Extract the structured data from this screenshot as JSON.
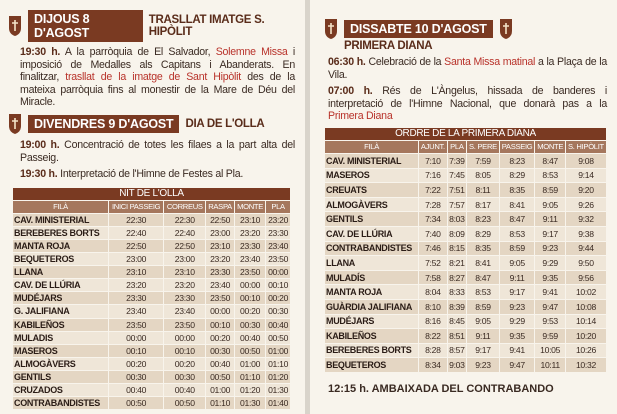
{
  "left": {
    "day1": {
      "title": "DIJOUS 8 D'AGOST",
      "subtitle": "TRASLLAT IMATGE S. HIPÒLIT"
    },
    "paras1": [
      [
        {
          "text": "19:30 h.",
          "bold": true
        },
        {
          "text": " A la parròquia de El Salvador, "
        },
        {
          "text": "Solemne Missa",
          "color": "#b8322a"
        },
        {
          "text": " i imposició de Medalles als Capitans i Abanderats. En finalitzar, "
        },
        {
          "text": "trasllat de la imatge de Sant Hipòlit",
          "color": "#b8322a"
        },
        {
          "text": " des de la mateixa parròquia fins al monestir de la Mare de Déu del Miracle."
        }
      ]
    ],
    "day2": {
      "title": "DIVENDRES 9 D'AGOST",
      "subtitle": "DIA DE L'OLLA"
    },
    "paras2": [
      [
        {
          "text": "19:00 h.",
          "bold": true
        },
        {
          "text": " Concentració de totes les filaes a la part alta del Passeig."
        }
      ],
      [
        {
          "text": "19:30 h.",
          "bold": true
        },
        {
          "text": " Interpretació de l'Himne de Festes al Pla."
        }
      ]
    ],
    "table": {
      "title": "NIT DE L'OLLA",
      "columns": [
        "FILÀ",
        "INICI PASSEIG",
        "CORREUS",
        "RASPA",
        "MONTE",
        "PLA"
      ],
      "rows": [
        [
          "CAV. MINISTERIAL",
          "22:30",
          "22:30",
          "22:50",
          "23:10",
          "23:20"
        ],
        [
          "BEREBERES BORTS",
          "22:40",
          "22:40",
          "23:00",
          "23:20",
          "23:30"
        ],
        [
          "MANTA ROJA",
          "22:50",
          "22:50",
          "23:10",
          "23:30",
          "23:40"
        ],
        [
          "BEQUETEROS",
          "23:00",
          "23:00",
          "23:20",
          "23:40",
          "23:50"
        ],
        [
          "LLANA",
          "23:10",
          "23:10",
          "23:30",
          "23:50",
          "00:00"
        ],
        [
          "CAV. DE LLÚRIA",
          "23:20",
          "23:20",
          "23:40",
          "00:00",
          "00:10"
        ],
        [
          "MUDÉJARS",
          "23:30",
          "23:30",
          "23:50",
          "00:10",
          "00:20"
        ],
        [
          "G. JALIFIANA",
          "23:40",
          "23:40",
          "00:00",
          "00:20",
          "00:30"
        ],
        [
          "KABILEÑOS",
          "23:50",
          "23:50",
          "00:10",
          "00:30",
          "00:40"
        ],
        [
          "MULADIS",
          "00:00",
          "00:00",
          "00:20",
          "00:40",
          "00:50"
        ],
        [
          "MASEROS",
          "00:10",
          "00:10",
          "00:30",
          "00:50",
          "01:00"
        ],
        [
          "ALMOGÀVERS",
          "00:20",
          "00:20",
          "00:40",
          "01:00",
          "01:10"
        ],
        [
          "GENTILS",
          "00:30",
          "00:30",
          "00:50",
          "01:10",
          "01:20"
        ],
        [
          "CRUZADOS",
          "00:40",
          "00:40",
          "01:00",
          "01:20",
          "01:30"
        ],
        [
          "CONTRABANDISTES",
          "00:50",
          "00:50",
          "01:10",
          "01:30",
          "01:40"
        ]
      ]
    }
  },
  "right": {
    "day1": {
      "title": "DISSABTE 10 D'AGOST",
      "subtitle": "PRIMERA DIANA"
    },
    "paras1": [
      [
        {
          "text": "06:30 h.",
          "bold": true
        },
        {
          "text": " Celebració de la "
        },
        {
          "text": "Santa Missa matinal",
          "color": "#b8322a"
        },
        {
          "text": " a la Plaça de la Vila."
        }
      ],
      [
        {
          "text": "07:00 h.",
          "bold": true
        },
        {
          "text": " Rés de L'Àngelus, hissada de banderes i interpretació de l'Himne Nacional, que donarà pas a la "
        },
        {
          "text": "Primera Diana",
          "color": "#b8322a"
        }
      ]
    ],
    "table": {
      "title": "ORDRE DE LA PRIMERA DIANA",
      "columns": [
        "FILÀ",
        "AJUNT.",
        "PLA",
        "S. PERE",
        "PASSEIG",
        "MONTE",
        "S. HIPÒLIT"
      ],
      "rows": [
        [
          "CAV. MINISTERIAL",
          "7:10",
          "7:39",
          "7:59",
          "8:23",
          "8:47",
          "9:08"
        ],
        [
          "MASEROS",
          "7:16",
          "7:45",
          "8:05",
          "8:29",
          "8:53",
          "9:14"
        ],
        [
          "CREUATS",
          "7:22",
          "7:51",
          "8:11",
          "8:35",
          "8:59",
          "9:20"
        ],
        [
          "ALMOGÀVERS",
          "7:28",
          "7:57",
          "8:17",
          "8:41",
          "9:05",
          "9:26"
        ],
        [
          "GENTILS",
          "7:34",
          "8:03",
          "8:23",
          "8:47",
          "9:11",
          "9:32"
        ],
        [
          "CAV. DE LLÚRIA",
          "7:40",
          "8:09",
          "8:29",
          "8:53",
          "9:17",
          "9:38"
        ],
        [
          "CONTRABANDISTES",
          "7:46",
          "8:15",
          "8:35",
          "8:59",
          "9:23",
          "9:44"
        ],
        [
          "LLANA",
          "7:52",
          "8:21",
          "8:41",
          "9:05",
          "9:29",
          "9:50"
        ],
        [
          "MULADÍS",
          "7:58",
          "8:27",
          "8:47",
          "9:11",
          "9:35",
          "9:56"
        ],
        [
          "MANTA ROJA",
          "8:04",
          "8:33",
          "8:53",
          "9:17",
          "9:41",
          "10:02"
        ],
        [
          "GUÀRDIA JALIFIANA",
          "8:10",
          "8:39",
          "8:59",
          "9:23",
          "9:47",
          "10:08"
        ],
        [
          "MUDÉJARS",
          "8:16",
          "8:45",
          "9:05",
          "9:29",
          "9:53",
          "10:14"
        ],
        [
          "KABILEÑOS",
          "8:22",
          "8:51",
          "9:11",
          "9:35",
          "9:59",
          "10:20"
        ],
        [
          "BEREBERES BORTS",
          "8:28",
          "8:57",
          "9:17",
          "9:41",
          "10:05",
          "10:26"
        ],
        [
          "BEQUETEROS",
          "8:34",
          "9:03",
          "9:23",
          "9:47",
          "10:11",
          "10:32"
        ]
      ]
    },
    "footer": [
      {
        "text": "12:15 h.",
        "bold": true
      },
      {
        "text": " AMBAIXADA DEL CONTRABANDO"
      }
    ]
  }
}
